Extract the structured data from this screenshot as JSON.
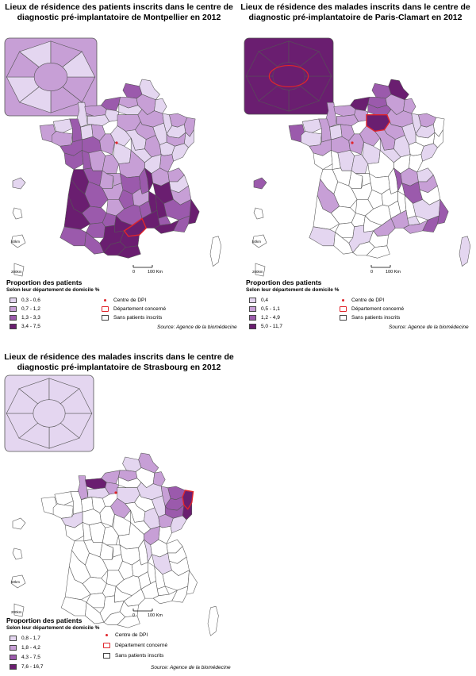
{
  "colors": {
    "c1": "#e4d6f0",
    "c2": "#c79fd6",
    "c3": "#9b5aac",
    "c4": "#6a1e70",
    "empty": "#ffffff",
    "border": "#555555",
    "highlight": "#e0252b"
  },
  "panels": [
    {
      "title_line1": "Lieux de résidence des patients inscrits dans le centre de",
      "title_line2": "diagnostic pré-implantatoire de Montpellier en 2012",
      "legend_title": "Proportion des patients",
      "legend_subtitle": "Selon leur département de domicile %",
      "classes": [
        "0,3 - 0,6",
        "0,7 - 1,2",
        "1,3 - 3,3",
        "3,4 - 7,5"
      ],
      "symbols": [
        "Centre de DPI",
        "Département concerné",
        "Sans patients inscrits"
      ],
      "source": "Source: Agence de la biomédecine",
      "scale_labels": [
        "0",
        "100 Km"
      ],
      "inset_scale_labels": [
        "50km",
        "200km"
      ],
      "region_classes": {
        "nord": 0,
        "pasdecalais": 2,
        "somme": 1,
        "aisne": 1,
        "manche": 0,
        "calvados": 1,
        "orne": 0,
        "eure": 0,
        "seinemaritime": 2,
        "oise": 0,
        "ardennes": 0,
        "marne": 1,
        "meuse": 0,
        "moselle": 1,
        "basrhin": 1,
        "hautrhin": 0,
        "vosges": 1,
        "meurthe": 0,
        "aube": 1,
        "hautemarne": 0,
        "finistere": 1,
        "cotesarmor": 0,
        "morbihan": 1,
        "illevilaine": 2,
        "loireatl": 2,
        "mayenne": 0,
        "sarthe": 1,
        "maineloire": 2,
        "vendee": 2,
        "deuxsevres": 2,
        "vienne": 1,
        "indreloire": 1,
        "loiret": 0,
        "yonne": 0,
        "cotedor": 1,
        "doubs": 0,
        "jura": 1,
        "saone": 0,
        "nievre": 0,
        "allier": 1,
        "cher": 0,
        "indre": 1,
        "charentemar": 3,
        "charente": 2,
        "hautevienne": 1,
        "creuse": 1,
        "puydedome": 2,
        "loire": 2,
        "rhone": 3,
        "ain": 1,
        "hautesavoie": 1,
        "savoie": 0,
        "isere": 3,
        "drome": 3,
        "ardeche": 3,
        "hauteloire": 1,
        "cantal": 2,
        "correze": 1,
        "dordogne": 2,
        "gironde": 3,
        "lotetgaronne": 2,
        "lot": 1,
        "aveyron": 2,
        "lozere": 2,
        "gard": 3,
        "vaucluse": 2,
        "alpesmar": 3,
        "var": 2,
        "bouchesdurhone": 3,
        "alpeshp": 2,
        "hautesalpes": 1,
        "landes": 3,
        "gers": 2,
        "tarnetgaronne": 2,
        "tarn": 3,
        "hautegaronne": 3,
        "ariege": 3,
        "hautespyr": 2,
        "pyratl": 2,
        "aude": 3,
        "pyrorient": 3,
        "herault": 3,
        "idf": 1,
        "corse": -1
      },
      "highlight": "herault",
      "inset_classes": [
        1,
        1,
        0,
        0,
        1,
        0,
        1,
        0
      ]
    },
    {
      "title_line1": "Lieux de résidence des malades inscrits dans le centre de",
      "title_line2": "diagnostic pré-implantatoire de Paris-Clamart en 2012",
      "legend_title": "Proportion des patients",
      "legend_subtitle": "Selon leur département de domicile %",
      "classes": [
        "0,4",
        "0,5 - 1,1",
        "1,2 - 4,9",
        "5,0 - 11,7"
      ],
      "symbols": [
        "Centre de DPI",
        "Département concerné",
        "Sans patients inscrits"
      ],
      "source": "Source: Agence de la biomédecine",
      "scale_labels": [
        "0",
        "100 Km"
      ],
      "inset_scale_labels": [
        "50km",
        "200km"
      ],
      "region_classes": {
        "nord": 3,
        "pasdecalais": 2,
        "somme": 2,
        "aisne": 1,
        "manche": 1,
        "calvados": 1,
        "orne": 1,
        "eure": 1,
        "seinemaritime": 3,
        "oise": 2,
        "ardennes": 1,
        "marne": 1,
        "meuse": 0,
        "moselle": 1,
        "basrhin": -1,
        "hautrhin": -1,
        "vosges": -1,
        "meurthe": 0,
        "aube": 1,
        "hautemarne": 0,
        "finistere": 2,
        "cotesarmor": 0,
        "morbihan": 0,
        "illevilaine": 1,
        "loireatl": 1,
        "mayenne": 0,
        "sarthe": 1,
        "maineloire": 1,
        "vendee": -1,
        "deuxsevres": -1,
        "vienne": 0,
        "indreloire": 1,
        "loiret": 1,
        "yonne": 1,
        "cotedor": 0,
        "doubs": 0,
        "jura": -1,
        "saone": -1,
        "nievre": 0,
        "allier": -1,
        "cher": 0,
        "indre": 0,
        "charentemar": -1,
        "charente": -1,
        "hautevienne": -1,
        "creuse": -1,
        "puydedome": -1,
        "loire": -1,
        "rhone": 2,
        "ain": 1,
        "hautesavoie": 0,
        "savoie": 1,
        "isere": 2,
        "drome": -1,
        "ardeche": -1,
        "hauteloire": -1,
        "cantal": -1,
        "correze": -1,
        "dordogne": -1,
        "gironde": 1,
        "lotetgaronne": -1,
        "lot": -1,
        "aveyron": -1,
        "lozere": -1,
        "gard": 1,
        "vaucluse": 0,
        "alpesmar": 2,
        "var": 2,
        "bouchesdurhone": 1,
        "alpeshp": 0,
        "hautesalpes": -1,
        "landes": -1,
        "gers": -1,
        "tarnetgaronne": -1,
        "tarn": -1,
        "hautegaronne": 0,
        "ariege": -1,
        "hautespyr": -1,
        "pyratl": 0,
        "aude": -1,
        "pyrorient": -1,
        "herault": 1,
        "idf": 3,
        "corse": 0
      },
      "highlight": "idf",
      "inset_classes": [
        3,
        3,
        3,
        3,
        3,
        3,
        3,
        3
      ]
    },
    {
      "title_line1": "Lieux de résidence des malades inscrits dans le centre de",
      "title_line2": "diagnostic pré-implantatoire de Strasbourg en 2012",
      "legend_title": "Proportion des patients",
      "legend_subtitle": "Selon leur département de domicile %",
      "classes": [
        "0,8 - 1,7",
        "1,8 - 4,2",
        "4,3 - 7,5",
        "7,6 - 16,7"
      ],
      "symbols": [
        "Centre de DPI",
        "Département concerné",
        "Sans patients inscrits"
      ],
      "source": "Source: Agence de la biomédecine",
      "scale_labels": [
        "0",
        "100 Km"
      ],
      "inset_scale_labels": [
        "50km",
        "200km"
      ],
      "region_classes": {
        "nord": 1,
        "pasdecalais": 0,
        "somme": 1,
        "aisne": -1,
        "manche": 1,
        "calvados": 3,
        "orne": 0,
        "eure": 1,
        "seinemaritime": 1,
        "oise": -1,
        "ardennes": 1,
        "marne": 0,
        "meuse": 1,
        "moselle": 2,
        "basrhin": 3,
        "hautrhin": 3,
        "vosges": 2,
        "meurthe": 2,
        "aube": -1,
        "hautemarne": 0,
        "finistere": -1,
        "cotesarmor": -1,
        "morbihan": -1,
        "illevilaine": -1,
        "loireatl": 0,
        "mayenne": -1,
        "sarthe": -1,
        "maineloire": -1,
        "vendee": -1,
        "deuxsevres": -1,
        "vienne": -1,
        "indreloire": -1,
        "loiret": 1,
        "yonne": -1,
        "cotedor": 0,
        "doubs": 0,
        "jura": -1,
        "saone": 1,
        "nievre": -1,
        "allier": -1,
        "cher": -1,
        "indre": -1,
        "charentemar": -1,
        "charente": -1,
        "hautevienne": -1,
        "creuse": -1,
        "puydedome": -1,
        "loire": -1,
        "rhone": 0,
        "ain": -1,
        "hautesavoie": -1,
        "savoie": -1,
        "isere": 0,
        "drome": -1,
        "ardeche": -1,
        "hauteloire": -1,
        "cantal": -1,
        "correze": -1,
        "dordogne": -1,
        "gironde": -1,
        "lotetgaronne": -1,
        "lot": -1,
        "aveyron": -1,
        "lozere": -1,
        "gard": -1,
        "vaucluse": -1,
        "alpesmar": -1,
        "var": -1,
        "bouchesdurhone": -1,
        "alpeshp": -1,
        "hautesalpes": -1,
        "landes": -1,
        "gers": -1,
        "tarnetgaronne": -1,
        "tarn": -1,
        "hautegaronne": -1,
        "ariege": -1,
        "hautespyr": -1,
        "pyratl": -1,
        "aude": -1,
        "pyrorient": -1,
        "herault": -1,
        "idf": 0,
        "corse": -1
      },
      "highlight": "basrhin",
      "inset_classes": [
        0,
        0,
        0,
        0,
        0,
        0,
        0,
        0
      ]
    }
  ]
}
